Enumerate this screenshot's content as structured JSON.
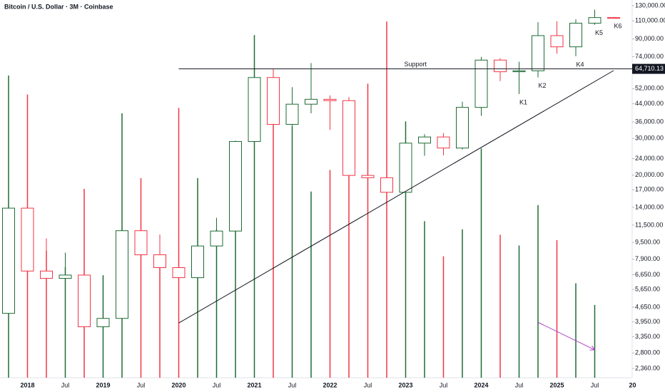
{
  "chart_data": {
    "type": "candlestick",
    "title": "Bitcoin / U.S. Dollar · 3M · Coinbase",
    "categories": [
      null,
      "2018",
      null,
      "Jul",
      null,
      "2019",
      null,
      "Jul",
      null,
      "2020",
      null,
      "Jul",
      null,
      "2021",
      null,
      "Jul",
      null,
      "2022",
      null,
      "Jul",
      null,
      "2023",
      null,
      "Jul",
      null,
      "2024",
      null,
      "Jul",
      null,
      "2025",
      null,
      "Jul",
      null,
      "20"
    ],
    "open": [
      4340,
      13880,
      6926,
      6390,
      6626,
      3742,
      4105,
      10818,
      8289,
      7193,
      6438,
      9137,
      10776,
      28990,
      58800,
      35040,
      43790,
      46220,
      45540,
      19930,
      19430,
      16540,
      28470,
      30480,
      26970,
      42280,
      71290,
      62680,
      63330,
      93430,
      82550,
      107170,
      114050,
      null
    ],
    "high": [
      19891,
      17170,
      9948,
      8490,
      6840,
      4200,
      13880,
      12325,
      10370,
      10500,
      10000,
      12470,
      29300,
      61800,
      64900,
      52900,
      69000,
      48240,
      47400,
      25200,
      21480,
      29190,
      31430,
      31800,
      45000,
      73800,
      72800,
      70000,
      108350,
      109590,
      111980,
      124500,
      114300,
      null
    ],
    "low": [
      4116,
      5873,
      5780,
      5860,
      3130,
      3350,
      4060,
      7710,
      6515,
      3850,
      6150,
      8900,
      10400,
      28000,
      28800,
      29300,
      39600,
      32950,
      17600,
      17600,
      15480,
      16490,
      24750,
      24900,
      26540,
      38500,
      56500,
      49000,
      58860,
      76600,
      74400,
      105300,
      113700,
      null
    ],
    "close": [
      13880,
      6926,
      6390,
      6626,
      3742,
      4105,
      10818,
      8289,
      7193,
      6438,
      9137,
      10776,
      28990,
      58800,
      35040,
      43790,
      46220,
      45540,
      19930,
      19430,
      16540,
      28470,
      30480,
      26970,
      42280,
      71290,
      62680,
      63330,
      93430,
      82550,
      107170,
      114050,
      114000,
      null
    ],
    "volume": [
      112,
      105,
      47,
      41,
      70,
      38,
      98,
      74,
      45,
      100,
      74,
      55,
      77,
      127,
      100,
      93,
      69,
      77,
      98,
      109,
      132,
      95,
      58,
      45,
      55,
      85,
      53,
      49,
      64,
      51,
      35,
      27,
      null,
      null
    ],
    "vlim": [
      0,
      140
    ],
    "up_color": "#1e6b34",
    "down_color": "#f23645",
    "log_scale": true,
    "ylim": [
      2130,
      138500
    ],
    "yticks": [
      {
        "value": 130000,
        "label": "130,000.00"
      },
      {
        "value": 110000,
        "label": "110,000.00"
      },
      {
        "value": 90000,
        "label": "90,000.00"
      },
      {
        "value": 74000,
        "label": "74,000.00"
      },
      {
        "value": 52000,
        "label": "52,000.00"
      },
      {
        "value": 44000,
        "label": "44,000.00"
      },
      {
        "value": 36000,
        "label": "36,000.00"
      },
      {
        "value": 30000,
        "label": "30,000.00"
      },
      {
        "value": 24000,
        "label": "24,000.00"
      },
      {
        "value": 20000,
        "label": "20,000.00"
      },
      {
        "value": 17000,
        "label": "17,000.00"
      },
      {
        "value": 14000,
        "label": "14,000.00"
      },
      {
        "value": 11500,
        "label": "11,500.00"
      },
      {
        "value": 9500,
        "label": "9,500.00"
      },
      {
        "value": 7900,
        "label": "7,900.00"
      },
      {
        "value": 6650,
        "label": "6,650.00"
      },
      {
        "value": 5650,
        "label": "5,650.00"
      },
      {
        "value": 4650,
        "label": "4,650.00"
      },
      {
        "value": 3950,
        "label": "3,950.00"
      },
      {
        "value": 3350,
        "label": "3,350.00"
      },
      {
        "value": 2800,
        "label": "2,800.00"
      },
      {
        "value": 2360,
        "label": "2,360.00"
      }
    ],
    "last_price": {
      "value": 64710.13,
      "label": "64,710.13"
    },
    "support": {
      "label": "Support",
      "value": 64710.13,
      "start": 9
    },
    "trendline": {
      "start": [
        9,
        3900
      ],
      "end": [
        32,
        63500
      ]
    },
    "arrow": {
      "start": [
        28,
        3930
      ],
      "end": [
        31,
        2900
      ],
      "color": "#b03cc8"
    },
    "annotations": [
      {
        "text": "K1",
        "index": 27
      },
      {
        "text": "K2",
        "index": 28
      },
      {
        "text": "K4",
        "index": 30
      },
      {
        "text": "K5",
        "index": 31
      },
      {
        "text": "K6",
        "index": 32
      }
    ]
  }
}
